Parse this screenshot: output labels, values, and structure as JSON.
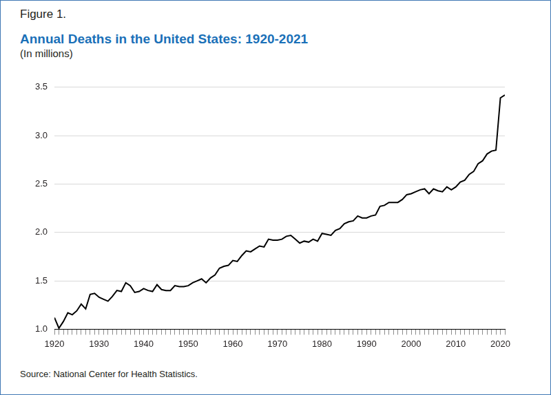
{
  "chart_data": {
    "type": "line",
    "label": "Figure 1.",
    "title": "Annual Deaths in the United States: 1920-2021",
    "subtitle": "(In millions)",
    "source": "Source: National Center for Health Statistics.",
    "x": [
      1920,
      1921,
      1922,
      1923,
      1924,
      1925,
      1926,
      1927,
      1928,
      1929,
      1930,
      1931,
      1932,
      1933,
      1934,
      1935,
      1936,
      1937,
      1938,
      1939,
      1940,
      1941,
      1942,
      1943,
      1944,
      1945,
      1946,
      1947,
      1948,
      1949,
      1950,
      1951,
      1952,
      1953,
      1954,
      1955,
      1956,
      1957,
      1958,
      1959,
      1960,
      1961,
      1962,
      1963,
      1964,
      1965,
      1966,
      1967,
      1968,
      1969,
      1970,
      1971,
      1972,
      1973,
      1974,
      1975,
      1976,
      1977,
      1978,
      1979,
      1980,
      1981,
      1982,
      1983,
      1984,
      1985,
      1986,
      1987,
      1988,
      1989,
      1990,
      1991,
      1992,
      1993,
      1994,
      1995,
      1996,
      1997,
      1998,
      1999,
      2000,
      2001,
      2002,
      2003,
      2004,
      2005,
      2006,
      2007,
      2008,
      2009,
      2010,
      2011,
      2012,
      2013,
      2014,
      2015,
      2016,
      2017,
      2018,
      2019,
      2020,
      2021
    ],
    "values": [
      1.12,
      1.01,
      1.08,
      1.17,
      1.15,
      1.19,
      1.26,
      1.21,
      1.36,
      1.37,
      1.33,
      1.31,
      1.29,
      1.34,
      1.4,
      1.39,
      1.48,
      1.45,
      1.38,
      1.39,
      1.42,
      1.4,
      1.39,
      1.46,
      1.41,
      1.4,
      1.4,
      1.45,
      1.44,
      1.44,
      1.45,
      1.48,
      1.5,
      1.52,
      1.48,
      1.53,
      1.56,
      1.63,
      1.65,
      1.66,
      1.71,
      1.7,
      1.76,
      1.81,
      1.8,
      1.83,
      1.86,
      1.85,
      1.93,
      1.92,
      1.92,
      1.93,
      1.96,
      1.97,
      1.93,
      1.89,
      1.91,
      1.9,
      1.93,
      1.91,
      1.99,
      1.98,
      1.97,
      2.02,
      2.04,
      2.09,
      2.11,
      2.12,
      2.17,
      2.15,
      2.15,
      2.17,
      2.18,
      2.27,
      2.28,
      2.31,
      2.31,
      2.31,
      2.34,
      2.39,
      2.4,
      2.42,
      2.44,
      2.45,
      2.4,
      2.45,
      2.43,
      2.42,
      2.47,
      2.44,
      2.47,
      2.52,
      2.54,
      2.6,
      2.63,
      2.71,
      2.74,
      2.81,
      2.84,
      2.85,
      3.39,
      3.42
    ],
    "color": "#000000",
    "xlim": [
      1920,
      2021
    ],
    "xticks": [
      1920,
      1930,
      1940,
      1950,
      1960,
      1970,
      1980,
      1990,
      2000,
      2010,
      2020
    ],
    "ylim": [
      1,
      3.5
    ],
    "yticks": [
      {
        "value": 1,
        "label": "1.0"
      },
      1.5,
      {
        "value": 2,
        "label": "2.0"
      },
      2.5,
      {
        "value": 3,
        "label": "3.0"
      },
      3.5
    ],
    "grid": true
  }
}
